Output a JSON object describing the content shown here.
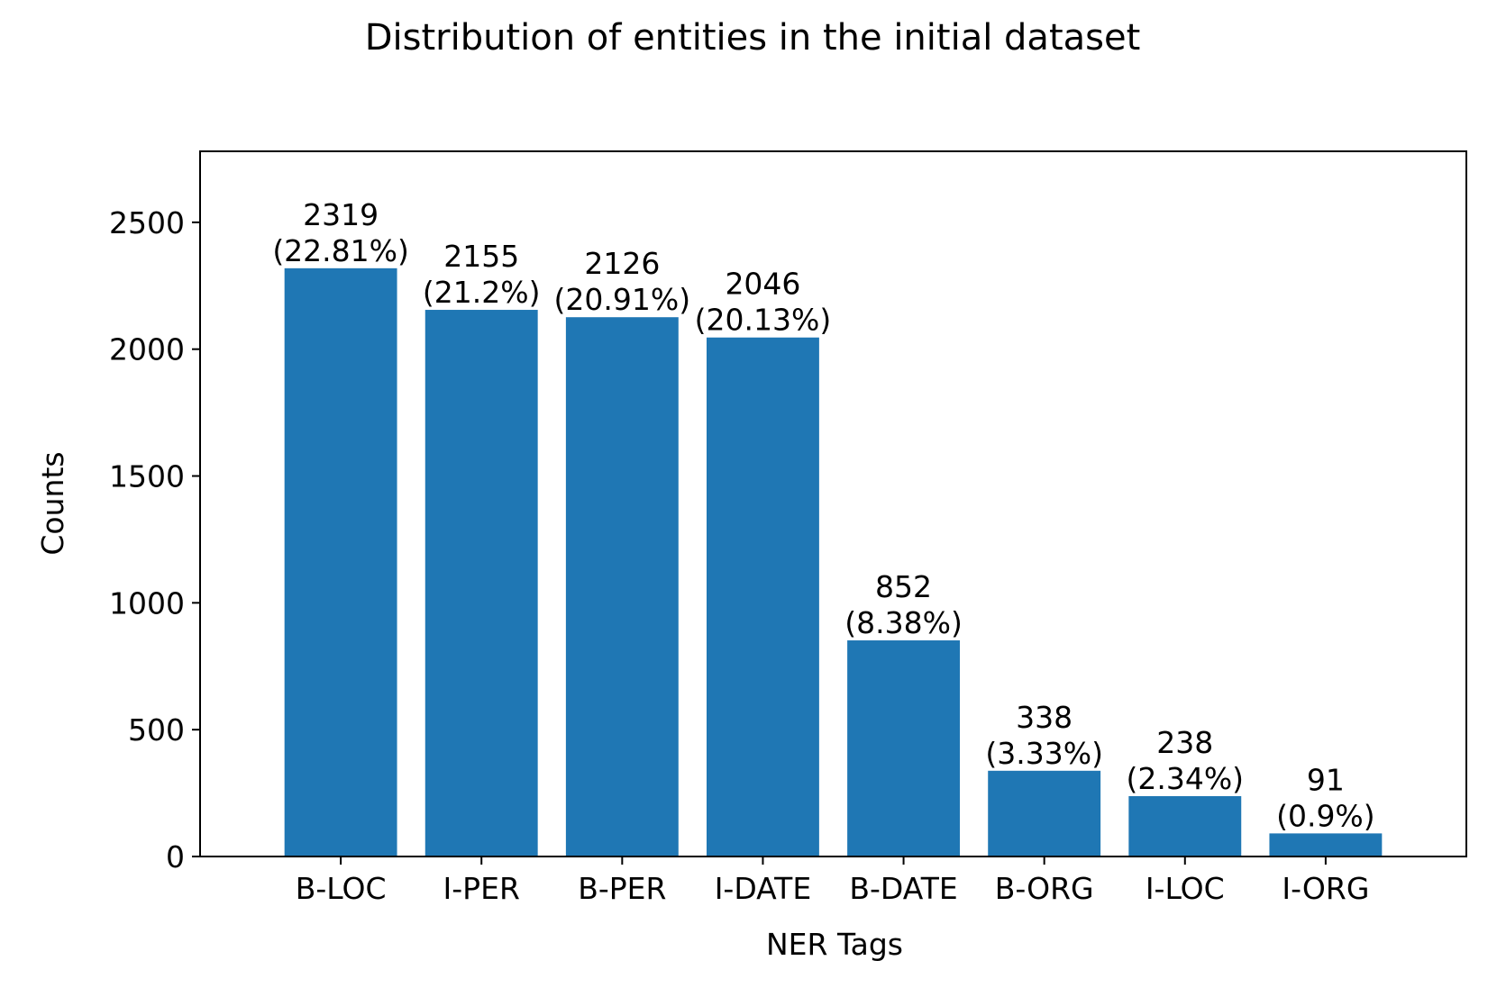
{
  "chart_data": {
    "type": "bar",
    "title": "Distribution of entities in the initial dataset",
    "xlabel": "NER Tags",
    "ylabel": "Counts",
    "categories": [
      "B-LOC",
      "I-PER",
      "B-PER",
      "I-DATE",
      "B-DATE",
      "B-ORG",
      "I-LOC",
      "I-ORG"
    ],
    "values": [
      2319,
      2155,
      2126,
      2046,
      852,
      338,
      238,
      91
    ],
    "value_labels": [
      "2319",
      "2155",
      "2126",
      "2046",
      "852",
      "338",
      "238",
      "91"
    ],
    "percent_labels": [
      "(22.81%)",
      "(21.2%)",
      "(20.91%)",
      "(20.13%)",
      "(8.38%)",
      "(3.33%)",
      "(2.34%)",
      "(0.9%)"
    ],
    "yticks": [
      0,
      500,
      1000,
      1500,
      2000,
      2500
    ],
    "ylim": [
      0,
      2780
    ],
    "bar_color": "#1f77b4",
    "grid": false,
    "legend": "none"
  }
}
